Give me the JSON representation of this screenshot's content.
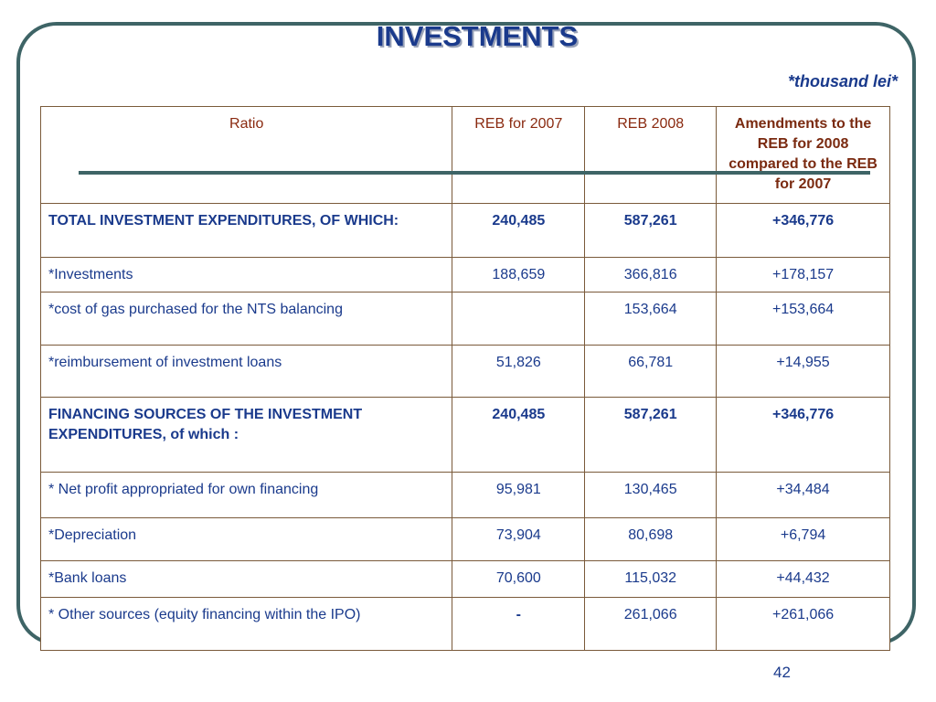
{
  "slide": {
    "title": "INVESTMENTS",
    "unit_note": "*thousand  lei*",
    "page_number": "42"
  },
  "table": {
    "headers": {
      "ratio": "Ratio",
      "reb_2007": "REB for 2007",
      "reb_2008": "REB 2008",
      "amendments": "Amendments to the REB for 2008 compared to the REB for 2007"
    },
    "rows": [
      {
        "label": "TOTAL INVESTMENT EXPENDITURES, OF WHICH:",
        "v2007": "240,485",
        "v2008": "587,261",
        "diff": "+346,776"
      },
      {
        "label": "*Investments",
        "v2007": "188,659",
        "v2008": "366,816",
        "diff": "+178,157"
      },
      {
        "label": "*cost of gas purchased for the NTS balancing",
        "v2007": "",
        "v2008": "153,664",
        "diff": "+153,664"
      },
      {
        "label": "*reimbursement of investment loans",
        "v2007": "51,826",
        "v2008": "66,781",
        "diff": "+14,955"
      },
      {
        "label": "FINANCING SOURCES OF THE INVESTMENT EXPENDITURES, of which :",
        "v2007": "240,485",
        "v2008": "587,261",
        "diff": "+346,776"
      },
      {
        "label": "* Net profit appropriated for own financing",
        "v2007": "95,981",
        "v2008": "130,465",
        "diff": "+34,484"
      },
      {
        "label": "*Depreciation",
        "v2007": "73,904",
        "v2008": "80,698",
        "diff": "+6,794"
      },
      {
        "label": "*Bank loans",
        "v2007": "70,600",
        "v2008": "115,032",
        "diff": "+44,432"
      },
      {
        "label": "* Other sources (equity financing within the IPO)",
        "v2007": "-",
        "v2008": "261,066",
        "diff": "+261,066"
      }
    ]
  }
}
